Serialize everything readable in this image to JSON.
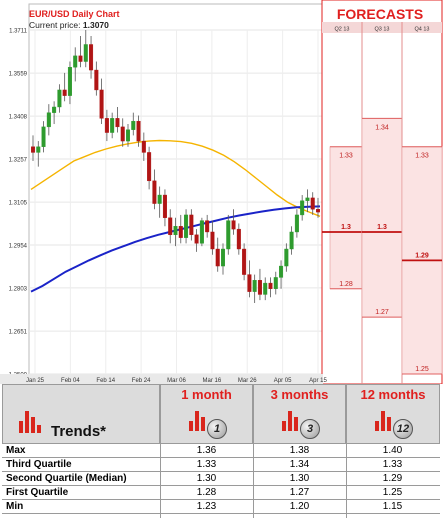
{
  "chart_data": {
    "type": "candlestick",
    "title": "EUR/USD Daily Chart",
    "current_price_label": "Current price:",
    "current_price": "1.3070",
    "y_ticks": [
      "1.3711",
      "1.3559",
      "1.3408",
      "1.3257",
      "1.3105",
      "1.2954",
      "1.2803",
      "1.2651",
      "1.2500"
    ],
    "x_ticks": [
      "Jan 25",
      "Feb 04",
      "Feb 14",
      "Feb 24",
      "Mar 06",
      "Mar 16",
      "Mar 26",
      "Apr 05",
      "Apr 15"
    ],
    "ylim": [
      1.25,
      1.3711
    ],
    "candles": [
      [
        1.33,
        1.334,
        1.325,
        1.328
      ],
      [
        1.328,
        1.332,
        1.323,
        1.33
      ],
      [
        1.33,
        1.339,
        1.328,
        1.337
      ],
      [
        1.337,
        1.345,
        1.334,
        1.342
      ],
      [
        1.342,
        1.346,
        1.338,
        1.344
      ],
      [
        1.344,
        1.352,
        1.342,
        1.35
      ],
      [
        1.35,
        1.356,
        1.346,
        1.348
      ],
      [
        1.348,
        1.36,
        1.345,
        1.358
      ],
      [
        1.358,
        1.365,
        1.353,
        1.362
      ],
      [
        1.362,
        1.369,
        1.358,
        1.36
      ],
      [
        1.36,
        1.3711,
        1.358,
        1.366
      ],
      [
        1.366,
        1.369,
        1.354,
        1.357
      ],
      [
        1.357,
        1.36,
        1.348,
        1.35
      ],
      [
        1.35,
        1.354,
        1.338,
        1.34
      ],
      [
        1.34,
        1.343,
        1.332,
        1.335
      ],
      [
        1.335,
        1.342,
        1.333,
        1.34
      ],
      [
        1.34,
        1.344,
        1.335,
        1.337
      ],
      [
        1.337,
        1.34,
        1.33,
        1.332
      ],
      [
        1.332,
        1.338,
        1.33,
        1.336
      ],
      [
        1.336,
        1.342,
        1.334,
        1.339
      ],
      [
        1.339,
        1.341,
        1.33,
        1.332
      ],
      [
        1.332,
        1.335,
        1.325,
        1.328
      ],
      [
        1.328,
        1.33,
        1.315,
        1.318
      ],
      [
        1.318,
        1.322,
        1.308,
        1.31
      ],
      [
        1.31,
        1.316,
        1.305,
        1.313
      ],
      [
        1.313,
        1.315,
        1.302,
        1.305
      ],
      [
        1.305,
        1.308,
        1.296,
        1.299
      ],
      [
        1.299,
        1.305,
        1.295,
        1.302
      ],
      [
        1.302,
        1.306,
        1.296,
        1.298
      ],
      [
        1.298,
        1.308,
        1.296,
        1.306
      ],
      [
        1.306,
        1.308,
        1.297,
        1.299
      ],
      [
        1.299,
        1.301,
        1.293,
        1.296
      ],
      [
        1.296,
        1.305,
        1.295,
        1.304
      ],
      [
        1.304,
        1.306,
        1.298,
        1.3
      ],
      [
        1.3,
        1.304,
        1.292,
        1.294
      ],
      [
        1.294,
        1.298,
        1.286,
        1.288
      ],
      [
        1.288,
        1.296,
        1.285,
        1.294
      ],
      [
        1.294,
        1.306,
        1.292,
        1.304
      ],
      [
        1.304,
        1.308,
        1.299,
        1.301
      ],
      [
        1.301,
        1.303,
        1.292,
        1.294
      ],
      [
        1.294,
        1.296,
        1.283,
        1.285
      ],
      [
        1.285,
        1.29,
        1.277,
        1.279
      ],
      [
        1.279,
        1.285,
        1.275,
        1.283
      ],
      [
        1.283,
        1.287,
        1.276,
        1.278
      ],
      [
        1.278,
        1.284,
        1.276,
        1.282
      ],
      [
        1.282,
        1.284,
        1.277,
        1.28
      ],
      [
        1.28,
        1.286,
        1.278,
        1.284
      ],
      [
        1.284,
        1.29,
        1.28,
        1.288
      ],
      [
        1.288,
        1.296,
        1.286,
        1.294
      ],
      [
        1.294,
        1.302,
        1.292,
        1.3
      ],
      [
        1.3,
        1.308,
        1.298,
        1.306
      ],
      [
        1.306,
        1.313,
        1.304,
        1.311
      ],
      [
        1.311,
        1.315,
        1.307,
        1.312
      ],
      [
        1.312,
        1.314,
        1.306,
        1.308
      ],
      [
        1.308,
        1.312,
        1.305,
        1.307
      ]
    ],
    "series": [
      {
        "color": "#f5b400",
        "values": [
          1.315,
          1.3175,
          1.32,
          1.3225,
          1.325,
          1.3265,
          1.328,
          1.3292,
          1.3302,
          1.331,
          1.3316,
          1.332,
          1.3322,
          1.3321,
          1.3318,
          1.3312,
          1.3302,
          1.3288,
          1.327,
          1.3247,
          1.322,
          1.319,
          1.316,
          1.313,
          1.3104,
          1.3085,
          1.307,
          1.3055
        ]
      },
      {
        "color": "#1a23c8",
        "values": [
          1.279,
          1.281,
          1.2835,
          1.286,
          1.288,
          1.29,
          1.2918,
          1.2935,
          1.295,
          1.2965,
          1.2978,
          1.299,
          1.3,
          1.301,
          1.302,
          1.303,
          1.304,
          1.305,
          1.3058,
          1.3065,
          1.3072,
          1.3078,
          1.3083,
          1.3087,
          1.3089,
          1.309
        ]
      }
    ]
  },
  "forecasts": {
    "title": "FORECASTS",
    "columns": [
      {
        "label": "Q2 13",
        "upper": 1.33,
        "mid": 1.3,
        "lower": 1.28,
        "upper_label": "1.33",
        "mid_label": "1.3",
        "lower_label": "1.28"
      },
      {
        "label": "Q3 13",
        "upper": 1.34,
        "mid": 1.3,
        "lower": 1.27,
        "upper_label": "1.34",
        "mid_label": "1.3",
        "lower_label": "1.27"
      },
      {
        "label": "Q4 13",
        "upper": 1.33,
        "mid": 1.29,
        "lower": 1.25,
        "upper_label": "1.33",
        "mid_label": "1.29",
        "lower_label": "1.25"
      }
    ]
  },
  "trends": {
    "title": "Trends*",
    "headers": [
      "1 month",
      "3 months",
      "12 months"
    ],
    "badges": [
      "1",
      "3",
      "12"
    ],
    "rows": [
      {
        "name": "Max",
        "values": [
          "1.36",
          "1.38",
          "1.40"
        ]
      },
      {
        "name": "Third Quartile",
        "values": [
          "1.33",
          "1.34",
          "1.33"
        ]
      },
      {
        "name": "Second Quartile (Median)",
        "values": [
          "1.30",
          "1.30",
          "1.29"
        ]
      },
      {
        "name": "First Quartile",
        "values": [
          "1.28",
          "1.27",
          "1.25"
        ]
      },
      {
        "name": "Min",
        "values": [
          "1.23",
          "1.20",
          "1.15"
        ]
      }
    ]
  },
  "colors": {
    "accent": "#e0201f",
    "bull": "#2e9b2e",
    "bear": "#b01515"
  }
}
